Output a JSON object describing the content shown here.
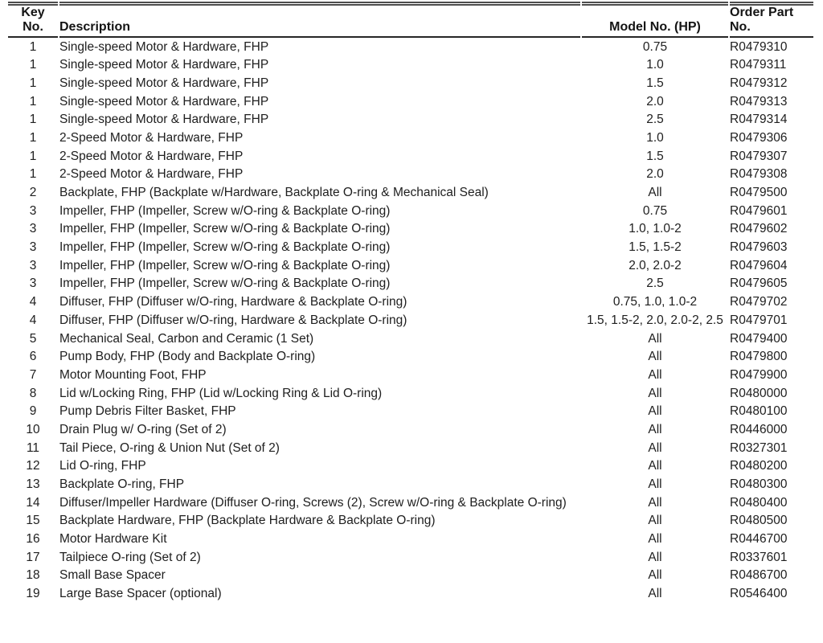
{
  "colors": {
    "text": "#202020",
    "top_rule": "#4d4d4d",
    "header_rule": "#262626",
    "background": "#ffffff"
  },
  "table": {
    "columns": [
      {
        "label": "Key\nNo."
      },
      {
        "label": "Description"
      },
      {
        "label": "Model No. (HP)"
      },
      {
        "label": "Order Part\nNo."
      }
    ],
    "rows": [
      {
        "key": "1",
        "description": "Single-speed Motor & Hardware, FHP",
        "model": "0.75",
        "part": "R0479310"
      },
      {
        "key": "1",
        "description": "Single-speed Motor & Hardware, FHP",
        "model": "1.0",
        "part": "R0479311"
      },
      {
        "key": "1",
        "description": "Single-speed Motor & Hardware, FHP",
        "model": "1.5",
        "part": "R0479312"
      },
      {
        "key": "1",
        "description": "Single-speed Motor & Hardware, FHP",
        "model": "2.0",
        "part": "R0479313"
      },
      {
        "key": "1",
        "description": "Single-speed Motor & Hardware, FHP",
        "model": "2.5",
        "part": "R0479314"
      },
      {
        "key": "1",
        "description": "2-Speed Motor & Hardware, FHP",
        "model": "1.0",
        "part": "R0479306"
      },
      {
        "key": "1",
        "description": "2-Speed Motor & Hardware, FHP",
        "model": "1.5",
        "part": "R0479307"
      },
      {
        "key": "1",
        "description": "2-Speed Motor & Hardware, FHP",
        "model": "2.0",
        "part": "R0479308"
      },
      {
        "key": "2",
        "description": "Backplate, FHP (Backplate w/Hardware, Backplate O-ring & Mechanical Seal)",
        "model": "All",
        "part": "R0479500"
      },
      {
        "key": "3",
        "description": "Impeller, FHP (Impeller, Screw w/O-ring & Backplate O-ring)",
        "model": "0.75",
        "part": "R0479601"
      },
      {
        "key": "3",
        "description": "Impeller, FHP (Impeller, Screw w/O-ring & Backplate O-ring)",
        "model": "1.0, 1.0-2",
        "part": "R0479602"
      },
      {
        "key": "3",
        "description": "Impeller, FHP (Impeller, Screw w/O-ring & Backplate O-ring)",
        "model": "1.5, 1.5-2",
        "part": "R0479603"
      },
      {
        "key": "3",
        "description": "Impeller, FHP (Impeller, Screw w/O-ring & Backplate O-ring)",
        "model": "2.0, 2.0-2",
        "part": "R0479604"
      },
      {
        "key": "3",
        "description": "Impeller, FHP (Impeller, Screw w/O-ring & Backplate O-ring)",
        "model": "2.5",
        "part": "R0479605"
      },
      {
        "key": "4",
        "description": "Diffuser, FHP (Diffuser w/O-ring, Hardware & Backplate O-ring)",
        "model": "0.75, 1.0, 1.0-2",
        "part": "R0479702"
      },
      {
        "key": "4",
        "description": "Diffuser, FHP (Diffuser w/O-ring, Hardware & Backplate O-ring)",
        "model": "1.5, 1.5-2, 2.0, 2.0-2, 2.5",
        "part": "R0479701"
      },
      {
        "key": "5",
        "description": "Mechanical Seal, Carbon and Ceramic (1 Set)",
        "model": "All",
        "part": "R0479400"
      },
      {
        "key": "6",
        "description": "Pump Body, FHP (Body and Backplate O-ring)",
        "model": "All",
        "part": "R0479800"
      },
      {
        "key": "7",
        "description": "Motor Mounting Foot, FHP",
        "model": "All",
        "part": "R0479900"
      },
      {
        "key": "8",
        "description": "Lid w/Locking Ring, FHP (Lid w/Locking Ring & Lid O-ring)",
        "model": "All",
        "part": "R0480000"
      },
      {
        "key": "9",
        "description": "Pump Debris Filter Basket, FHP",
        "model": "All",
        "part": "R0480100"
      },
      {
        "key": "10",
        "description": "Drain Plug w/ O-ring (Set of 2)",
        "model": "All",
        "part": "R0446000"
      },
      {
        "key": "11",
        "description": "Tail Piece, O-ring & Union Nut (Set of 2)",
        "model": "All",
        "part": "R0327301"
      },
      {
        "key": "12",
        "description": "Lid O-ring, FHP",
        "model": "All",
        "part": "R0480200"
      },
      {
        "key": "13",
        "description": "Backplate O-ring, FHP",
        "model": "All",
        "part": "R0480300"
      },
      {
        "key": "14",
        "description": "Diffuser/Impeller Hardware (Diffuser O-ring, Screws (2), Screw w/O-ring & Backplate O-ring)",
        "model": "All",
        "part": "R0480400"
      },
      {
        "key": "15",
        "description": "Backplate Hardware, FHP (Backplate Hardware & Backplate O-ring)",
        "model": "All",
        "part": "R0480500"
      },
      {
        "key": "16",
        "description": "Motor Hardware Kit",
        "model": "All",
        "part": "R0446700"
      },
      {
        "key": "17",
        "description": "Tailpiece O-ring (Set of 2)",
        "model": "All",
        "part": "R0337601"
      },
      {
        "key": "18",
        "description": "Small Base Spacer",
        "model": "All",
        "part": "R0486700"
      },
      {
        "key": "19",
        "description": "Large Base Spacer (optional)",
        "model": "All",
        "part": "R0546400"
      }
    ]
  }
}
